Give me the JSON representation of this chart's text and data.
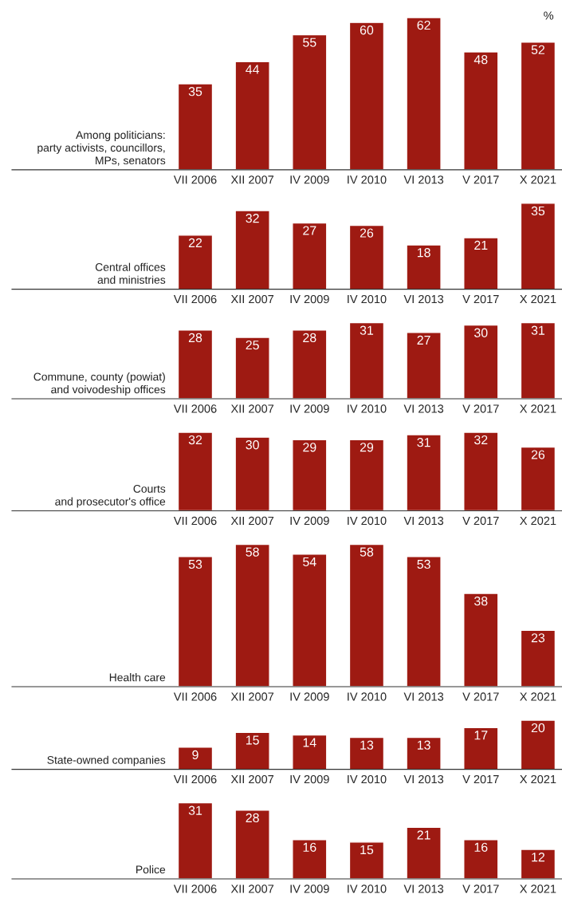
{
  "chart_data": [
    {
      "type": "bar",
      "title": "Among politicians:\nparty activists, councillors,\nMPs, senators",
      "categories": [
        "VII 2006",
        "XII 2007",
        "IV 2009",
        "IV 2010",
        "VI 2013",
        "V 2017",
        "X 2021"
      ],
      "values": [
        35,
        44,
        55,
        60,
        62,
        48,
        52
      ],
      "color": "#9e1a12",
      "data_labels": true,
      "annotations": [
        "%"
      ]
    },
    {
      "type": "bar",
      "title": "Central offices\nand ministries",
      "categories": [
        "VII 2006",
        "XII 2007",
        "IV 2009",
        "IV 2010",
        "VI 2013",
        "V 2017",
        "X 2021"
      ],
      "values": [
        22,
        32,
        27,
        26,
        18,
        21,
        35
      ],
      "color": "#9e1a12",
      "data_labels": true
    },
    {
      "type": "bar",
      "title": "Commune, county (powiat)\nand voivodeship offices",
      "categories": [
        "VII 2006",
        "XII 2007",
        "IV 2009",
        "IV 2010",
        "VI 2013",
        "V 2017",
        "X 2021"
      ],
      "values": [
        28,
        25,
        28,
        31,
        27,
        30,
        31
      ],
      "color": "#9e1a12",
      "data_labels": true
    },
    {
      "type": "bar",
      "title": "Courts\nand prosecutor's office",
      "categories": [
        "VII 2006",
        "XII 2007",
        "IV 2009",
        "IV 2010",
        "VI 2013",
        "V 2017",
        "X 2021"
      ],
      "values": [
        32,
        30,
        29,
        29,
        31,
        32,
        26
      ],
      "color": "#9e1a12",
      "data_labels": true
    },
    {
      "type": "bar",
      "title": "Health care",
      "categories": [
        "VII 2006",
        "XII 2007",
        "IV 2009",
        "IV 2010",
        "VI 2013",
        "V 2017",
        "X 2021"
      ],
      "values": [
        53,
        58,
        54,
        58,
        53,
        38,
        23
      ],
      "color": "#9e1a12",
      "data_labels": true
    },
    {
      "type": "bar",
      "title": "State-owned companies",
      "categories": [
        "VII 2006",
        "XII 2007",
        "IV 2009",
        "IV 2010",
        "VI 2013",
        "V 2017",
        "X 2021"
      ],
      "values": [
        9,
        15,
        14,
        13,
        13,
        17,
        20
      ],
      "color": "#9e1a12",
      "data_labels": true
    },
    {
      "type": "bar",
      "title": "Police",
      "categories": [
        "VII 2006",
        "XII 2007",
        "IV 2009",
        "IV 2010",
        "VI 2013",
        "V 2017",
        "X 2021"
      ],
      "values": [
        31,
        28,
        16,
        15,
        21,
        16,
        12
      ],
      "color": "#9e1a12",
      "data_labels": true
    }
  ]
}
